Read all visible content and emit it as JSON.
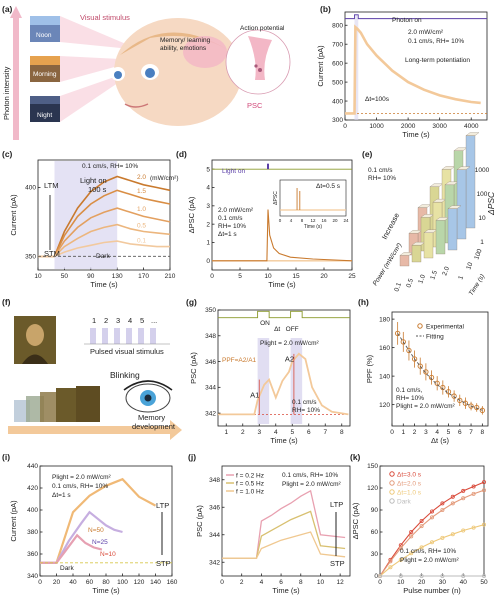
{
  "panels": {
    "a": {
      "label": "(a)",
      "photon_axis": "Photon intensity",
      "scene_labels": [
        "Noon",
        "Morning",
        "Night"
      ],
      "visual_stimulus": "Visual stimulus",
      "memory_text": "Memory/ learning ability, emotions",
      "action_potential": "Action potential",
      "psc": "PSC"
    },
    "b": {
      "label": "(b)",
      "annotations": [
        "Photon on",
        "2.0 mW/cm²",
        "0.1 cm/s, RH= 10%",
        "Long-term potentiation",
        "Δt=100s"
      ]
    },
    "c": {
      "label": "(c)",
      "annotations": [
        "0.1 cm/s, RH= 10%",
        "Light on",
        "100 s",
        "(mW/cm²)",
        "LTM",
        "STM",
        "Dark"
      ],
      "power_labels": [
        "2.0",
        "1.5",
        "1.0",
        "0.5",
        "0.1",
        "0"
      ]
    },
    "d": {
      "label": "(d)",
      "annotations": [
        "Light on",
        "2.0 mW/cm²",
        "0.1 cm/s",
        "RH= 10%",
        "Δt=1 s",
        "Δt=0.5 s"
      ],
      "inset": {
        "xlabel": "Time (s)",
        "ylabel": "ΔPSC",
        "xticks": [
          "0",
          "4",
          "8",
          "12",
          "16",
          "20",
          "24"
        ]
      }
    },
    "e": {
      "label": "(e)",
      "annotations": [
        "0.1 cm/s",
        "RH= 10%",
        "Increase"
      ],
      "zlabel": "ΔPSC",
      "zticks": [
        "1000",
        "100",
        "10",
        "1"
      ],
      "power_axis": "Power (mW/cm²)",
      "power_ticks": [
        "0.1",
        "0.5",
        "1.0",
        "1.5",
        "2.0"
      ],
      "time_axis": "Time (s)",
      "time_ticks": [
        "1",
        "10",
        "100"
      ]
    },
    "f": {
      "label": "(f)",
      "sequence": [
        "1",
        "2",
        "3",
        "4",
        "5",
        "..."
      ],
      "pulsed": "Pulsed visual stimulus",
      "blinking": "Blinking",
      "memory_dev": "Memory development"
    },
    "g": {
      "label": "(g)",
      "annotations": [
        "ON",
        "Δt",
        "OFF",
        "Plight = 2.0 mW/cm²",
        "PPF=A2/A1",
        "A1",
        "A2",
        "0.1 cm/s",
        "RH= 10%"
      ]
    },
    "h": {
      "label": "(h)",
      "legend": [
        "Experimental",
        "Fitting"
      ],
      "annotations": [
        "0.1 cm/s,",
        "RH= 10%",
        "Plight = 2.0 mW/cm²"
      ]
    },
    "i": {
      "label": "(i)",
      "annotations": [
        "Plight = 2.0 mW/cm²",
        "0.1 cm/s, RH= 10%",
        "Δt=1 s",
        "N=50",
        "N=25",
        "N=10",
        "Dark",
        "LTP",
        "STP"
      ]
    },
    "j": {
      "label": "(j)",
      "legend": [
        "f = 0.2 Hz",
        "f = 0.5 Hz",
        "f = 1.0 Hz"
      ],
      "annotations": [
        "0.1 cm/s, RH= 10%",
        "Plight = 2.0 mW/cm²",
        "LTP",
        "STP"
      ]
    },
    "k": {
      "label": "(k)",
      "legend": [
        "Δt=3.0 s",
        "Δt=2.0 s",
        "Δt=1.0 s",
        "Dark"
      ],
      "annotations": [
        "0.1 cm/s, RH= 10%",
        "Plight = 2.0 mW/cm²"
      ]
    }
  },
  "colors": {
    "orange": "#e8a860",
    "light_orange": "#f3c99a",
    "dark_orange": "#c97a2e",
    "purple": "#5b3fa8",
    "olive": "#8a9a2a",
    "shade": "#d9d6ef",
    "red": "#d94a3a",
    "pink": "#e39aa8"
  },
  "chart_data": [
    {
      "panel": "b",
      "type": "line",
      "xlabel": "Time (s)",
      "ylabel": "Current (pA)",
      "xlim": [
        0,
        4500
      ],
      "ylim": [
        300,
        870
      ],
      "xticks": [
        0,
        1000,
        2000,
        3000,
        4000
      ],
      "yticks": [
        300,
        400,
        500,
        600,
        700,
        800
      ],
      "series": [
        {
          "x": [
            0,
            300,
            330,
            400,
            500,
            700,
            1000,
            1500,
            2000,
            2500,
            3000,
            3500,
            4000,
            4300
          ],
          "y": [
            335,
            335,
            790,
            780,
            760,
            700,
            640,
            560,
            500,
            460,
            430,
            410,
            395,
            390
          ]
        }
      ]
    },
    {
      "panel": "c",
      "type": "line",
      "xlabel": "Time (s)",
      "ylabel": "Current (pA)",
      "xlim": [
        10,
        210
      ],
      "ylim": [
        340,
        420
      ],
      "xticks": [
        10,
        50,
        90,
        130,
        170,
        210
      ],
      "yticks": [
        350,
        400
      ],
      "series": [
        {
          "name": "2.0",
          "x": [
            10,
            35,
            50,
            70,
            90,
            110,
            130,
            150,
            170,
            190,
            210
          ],
          "y": [
            350,
            350,
            368,
            385,
            397,
            404,
            408,
            405,
            402,
            400,
            398
          ]
        },
        {
          "name": "1.5",
          "x": [
            10,
            35,
            50,
            70,
            90,
            110,
            130,
            150,
            170,
            190,
            210
          ],
          "y": [
            350,
            350,
            365,
            379,
            388,
            394,
            398,
            395,
            392,
            390,
            388
          ]
        },
        {
          "name": "1.0",
          "x": [
            10,
            35,
            50,
            70,
            90,
            110,
            130,
            150,
            170,
            190,
            210
          ],
          "y": [
            350,
            350,
            361,
            371,
            378,
            382,
            385,
            382,
            379,
            377,
            375
          ]
        },
        {
          "name": "0.5",
          "x": [
            10,
            35,
            50,
            70,
            90,
            110,
            130,
            150,
            170,
            190,
            210
          ],
          "y": [
            350,
            350,
            357,
            363,
            368,
            371,
            373,
            370,
            368,
            367,
            366
          ]
        },
        {
          "name": "0.1",
          "x": [
            10,
            35,
            50,
            70,
            90,
            110,
            130,
            150,
            170,
            190,
            210
          ],
          "y": [
            350,
            350,
            353,
            356,
            358,
            360,
            361,
            359,
            358,
            357,
            357
          ]
        },
        {
          "name": "0",
          "x": [
            10,
            210
          ],
          "y": [
            350,
            350
          ]
        }
      ]
    },
    {
      "panel": "d",
      "type": "line",
      "xlabel": "Time (s)",
      "ylabel": "ΔPSC (pA)",
      "xlim": [
        0,
        25
      ],
      "ylim": [
        -0.5,
        5.5
      ],
      "xticks": [
        0,
        5,
        10,
        15,
        20,
        25
      ],
      "yticks": [
        0,
        1,
        2,
        3,
        4,
        5
      ],
      "series": [
        {
          "x": [
            0,
            9.8,
            10,
            10.3,
            11,
            12,
            14,
            18,
            25
          ],
          "y": [
            0,
            0,
            2.8,
            1.4,
            0.7,
            0.4,
            0.2,
            0.1,
            0
          ]
        }
      ]
    },
    {
      "panel": "e",
      "type": "bar",
      "title": "",
      "zlabel": "ΔPSC",
      "power": [
        0.1,
        0.5,
        1.0,
        1.5,
        2.0
      ],
      "time": [
        1,
        10,
        100
      ],
      "values": [
        [
          1.2,
          3,
          10
        ],
        [
          2,
          8,
          40
        ],
        [
          4,
          20,
          120
        ],
        [
          8,
          60,
          400
        ],
        [
          15,
          150,
          1000
        ]
      ]
    },
    {
      "panel": "g",
      "type": "line",
      "xlabel": "Time (s)",
      "ylabel": "PSC (pA)",
      "xlim": [
        0.5,
        8.5
      ],
      "ylim": [
        341,
        350
      ],
      "xticks": [
        1,
        2,
        3,
        4,
        5,
        6,
        7,
        8
      ],
      "yticks": [
        342,
        344,
        346,
        348,
        350
      ],
      "series": [
        {
          "x": [
            0.5,
            2.7,
            2.9,
            3.3,
            3.6,
            4.0,
            4.4,
            4.8,
            5.0,
            5.4,
            5.8,
            6.2,
            6.8,
            7.4,
            8.4
          ],
          "y": [
            341.9,
            341.9,
            343.0,
            344.2,
            344.6,
            343.2,
            344.5,
            345.2,
            346.0,
            346.6,
            346.2,
            344.0,
            342.6,
            342.1,
            341.9
          ]
        }
      ]
    },
    {
      "panel": "h",
      "type": "scatter",
      "xlabel": "Δt (s)",
      "ylabel": "PPF (%)",
      "xlim": [
        0,
        8.5
      ],
      "ylim": [
        105,
        185
      ],
      "xticks": [
        0,
        1,
        2,
        3,
        4,
        5,
        6,
        7,
        8
      ],
      "yticks": [
        120,
        140,
        160,
        180
      ],
      "series": [
        {
          "name": "Experimental",
          "x": [
            0.5,
            1,
            1.5,
            2,
            2.5,
            3,
            3.5,
            4,
            4.5,
            5,
            5.5,
            6,
            6.5,
            7,
            7.5,
            8
          ],
          "y": [
            170,
            164,
            158,
            152,
            147,
            143,
            139,
            135,
            132,
            129,
            126,
            123,
            121,
            119,
            118,
            116
          ],
          "err": [
            8,
            7,
            7,
            6,
            6,
            6,
            5,
            5,
            5,
            4,
            4,
            4,
            4,
            3,
            3,
            3
          ]
        },
        {
          "name": "Fitting",
          "x": [
            0.5,
            1,
            2,
            3,
            4,
            5,
            6,
            7,
            8
          ],
          "y": [
            170,
            164,
            152,
            142,
            134,
            128,
            123,
            119,
            116
          ]
        }
      ]
    },
    {
      "panel": "i",
      "type": "line",
      "xlabel": "Time (s)",
      "ylabel": "Current (pA)",
      "xlim": [
        0,
        160
      ],
      "ylim": [
        340,
        440
      ],
      "xticks": [
        0,
        20,
        40,
        60,
        80,
        100,
        120,
        140,
        160
      ],
      "yticks": [
        340,
        360,
        380,
        400,
        420,
        440
      ],
      "series": [
        {
          "name": "N=50",
          "x": [
            0,
            20,
            40,
            60,
            80,
            100,
            110,
            120,
            140
          ],
          "y": [
            352,
            352,
            398,
            413,
            422,
            428,
            420,
            412,
            404
          ]
        },
        {
          "name": "N=25",
          "x": [
            0,
            20,
            35,
            50,
            60,
            70,
            80,
            90,
            100
          ],
          "y": [
            352,
            352,
            372,
            388,
            398,
            392,
            386,
            382,
            380
          ]
        },
        {
          "name": "N=10",
          "x": [
            0,
            20,
            30,
            40,
            45,
            55,
            65,
            75
          ],
          "y": [
            352,
            352,
            362,
            372,
            377,
            370,
            366,
            364
          ]
        },
        {
          "name": "Dark",
          "x": [
            0,
            160
          ],
          "y": [
            352,
            352
          ]
        }
      ]
    },
    {
      "panel": "j",
      "type": "line",
      "xlabel": "Time (s)",
      "ylabel": "PSC (pA)",
      "xlim": [
        0,
        13
      ],
      "ylim": [
        341,
        349
      ],
      "xticks": [
        0,
        2,
        4,
        6,
        8,
        10,
        12
      ],
      "yticks": [
        342,
        344,
        346,
        348
      ],
      "series": [
        {
          "name": "f = 0.2 Hz",
          "x": [
            0,
            3.5,
            4,
            5,
            6,
            7,
            8,
            9,
            10,
            12.5
          ],
          "y": [
            342.3,
            342.3,
            345.0,
            345.4,
            345.9,
            346.3,
            346.8,
            347.2,
            344.0,
            343.8
          ]
        },
        {
          "name": "f = 0.5 Hz",
          "x": [
            0,
            3.5,
            4,
            5,
            6,
            7,
            8,
            9,
            10,
            12.5
          ],
          "y": [
            342.3,
            342.3,
            343.9,
            344.3,
            344.7,
            345.1,
            345.4,
            345.7,
            343.2,
            343.0
          ]
        },
        {
          "name": "f = 1.0 Hz",
          "x": [
            0,
            3.5,
            4,
            5,
            6,
            7,
            8,
            9,
            10,
            12.5
          ],
          "y": [
            342.3,
            342.3,
            343.0,
            343.3,
            343.6,
            343.8,
            344.0,
            344.2,
            342.6,
            342.4
          ]
        }
      ]
    },
    {
      "panel": "k",
      "type": "scatter",
      "xlabel": "Pulse number (n)",
      "ylabel": "ΔPSC (pA)",
      "xlim": [
        0,
        50
      ],
      "ylim": [
        0,
        150
      ],
      "xticks": [
        0,
        10,
        20,
        30,
        40,
        50
      ],
      "yticks": [
        0,
        30,
        60,
        90,
        120,
        150
      ],
      "series": [
        {
          "name": "Δt=3.0 s",
          "x": [
            0,
            5,
            10,
            15,
            20,
            25,
            30,
            35,
            40,
            45,
            50
          ],
          "y": [
            0,
            22,
            42,
            60,
            75,
            88,
            99,
            108,
            116,
            122,
            128
          ]
        },
        {
          "name": "Δt=2.0 s",
          "x": [
            0,
            5,
            10,
            15,
            20,
            25,
            30,
            35,
            40,
            45,
            50
          ],
          "y": [
            0,
            20,
            38,
            54,
            68,
            80,
            90,
            99,
            106,
            112,
            117
          ]
        },
        {
          "name": "Δt=1.0 s",
          "x": [
            0,
            5,
            10,
            15,
            20,
            25,
            30,
            35,
            40,
            45,
            50
          ],
          "y": [
            0,
            12,
            22,
            31,
            39,
            46,
            52,
            57,
            62,
            66,
            70
          ]
        },
        {
          "name": "Dark",
          "x": [
            0,
            10,
            20,
            30,
            40,
            50
          ],
          "y": [
            0,
            0,
            0,
            0,
            0,
            0
          ]
        }
      ]
    }
  ]
}
